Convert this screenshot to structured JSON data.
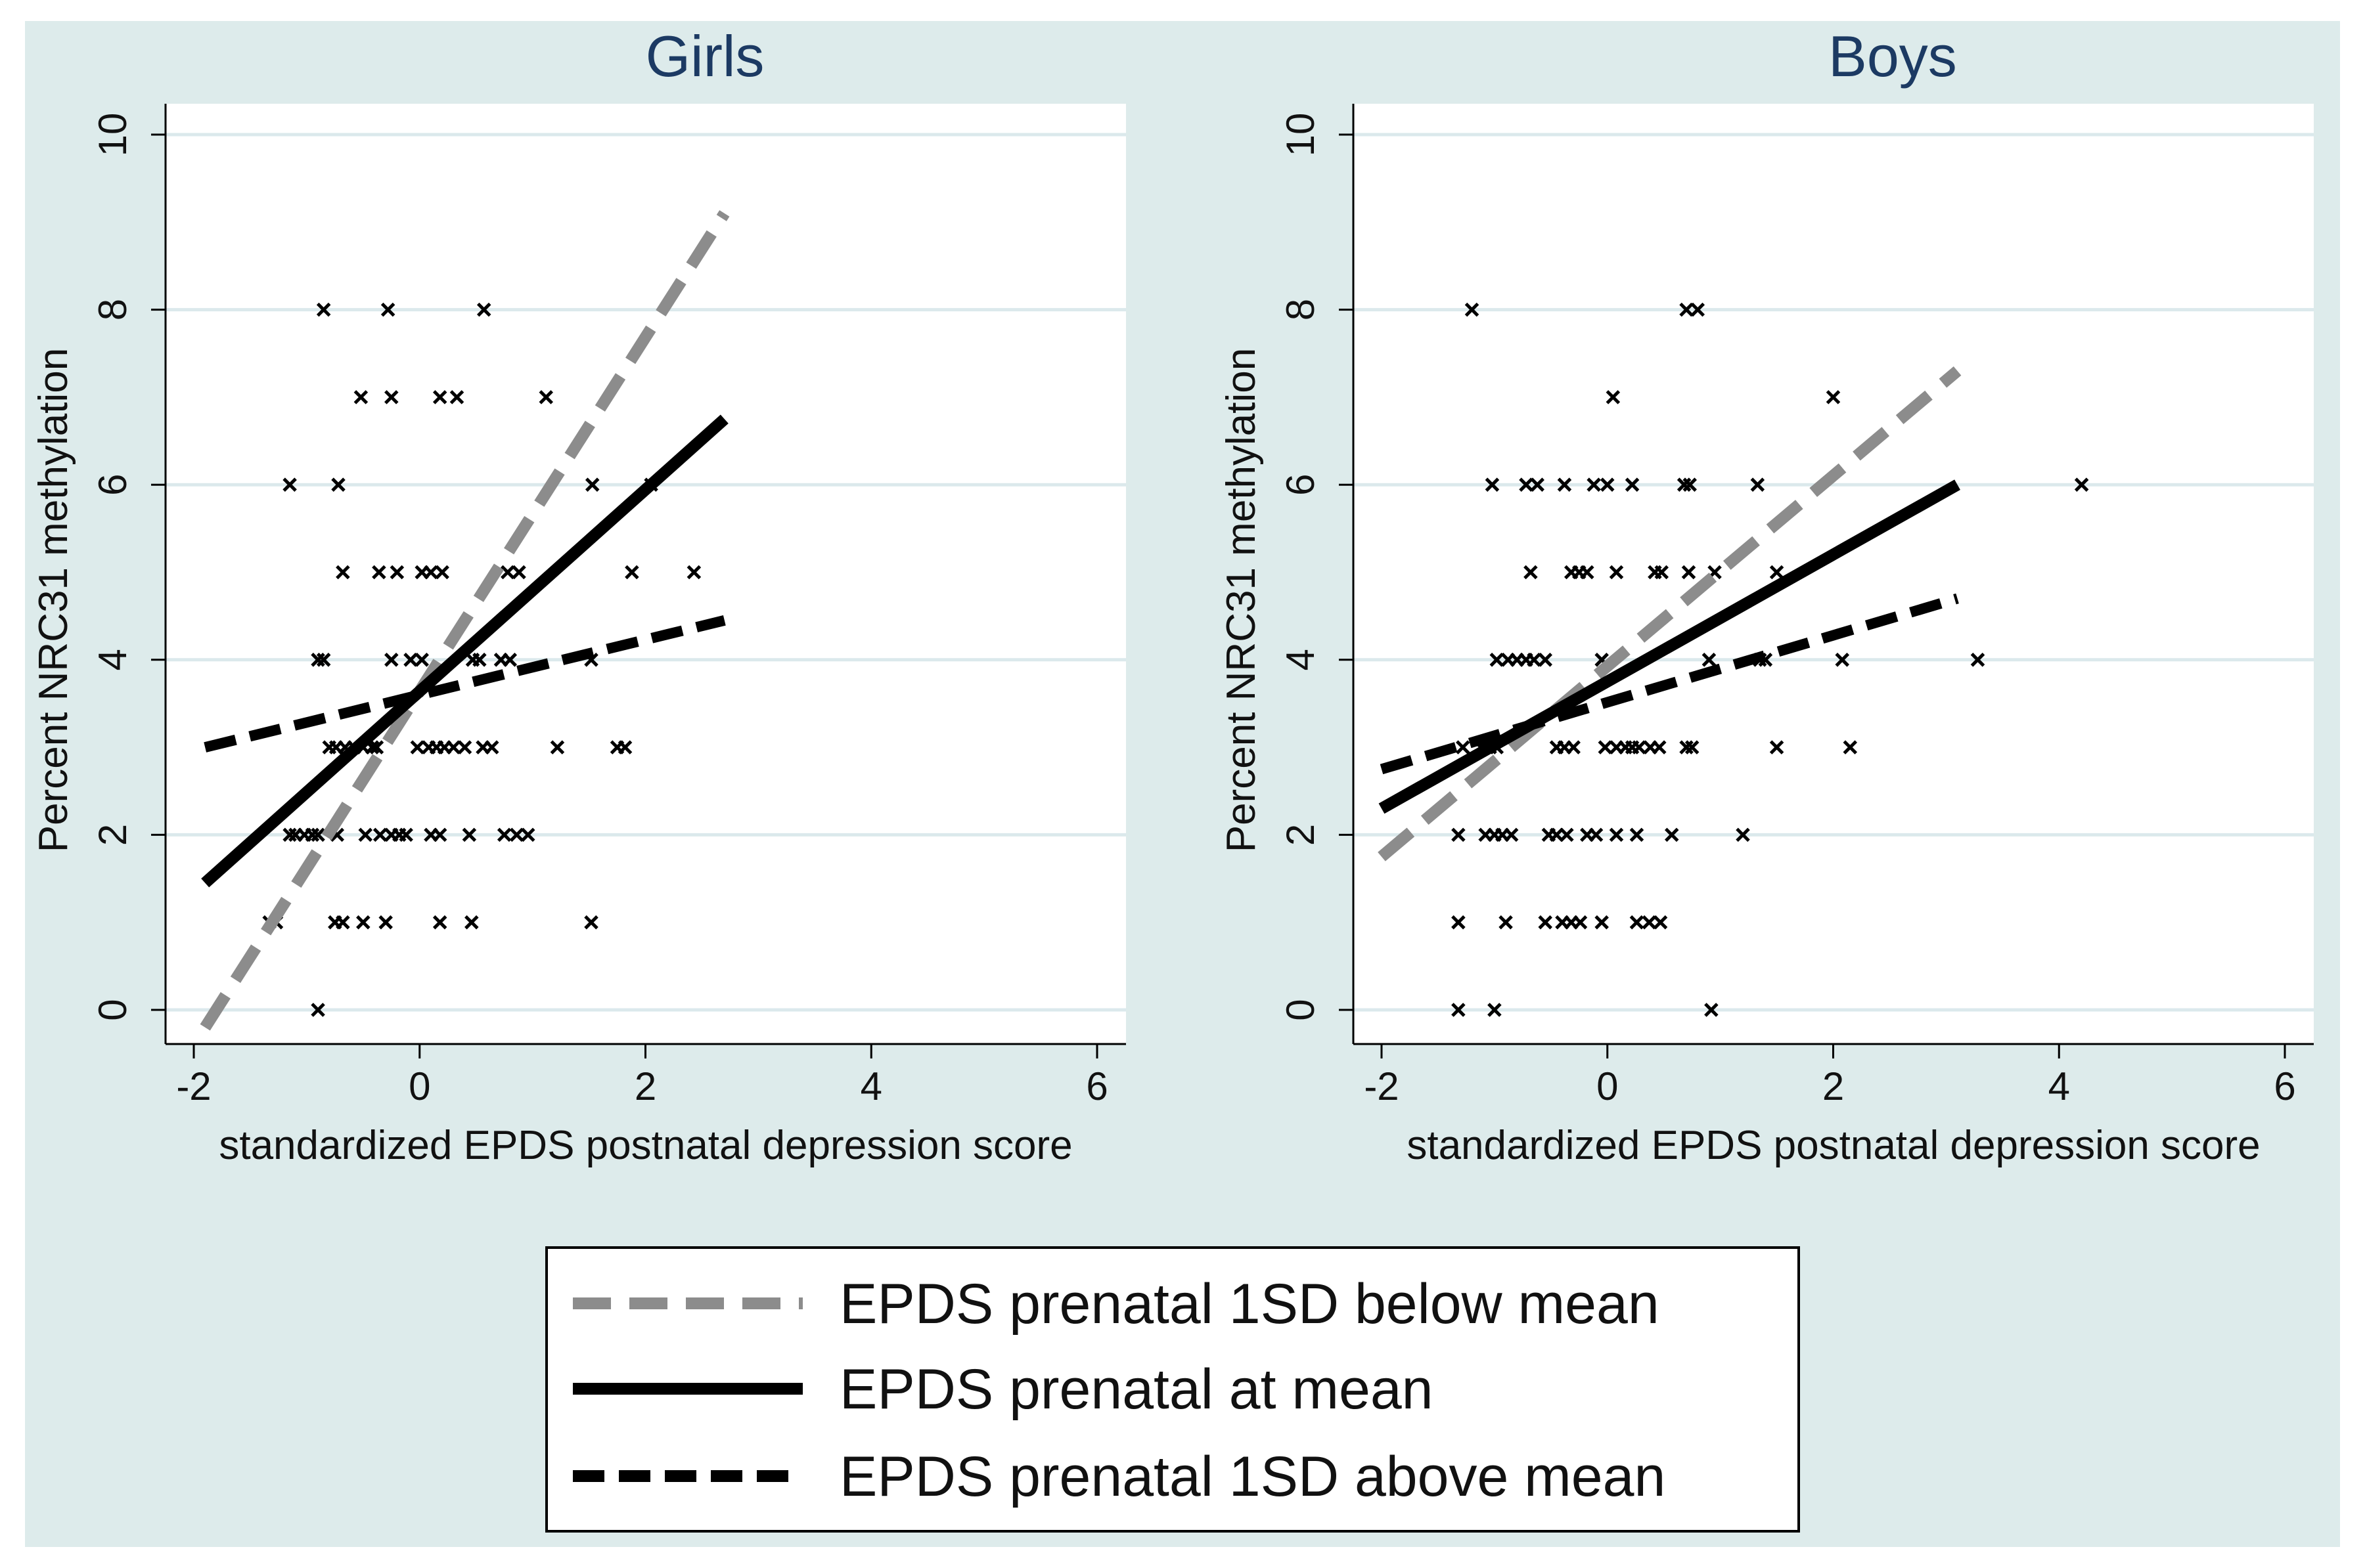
{
  "figure": {
    "background_color": "#ddebeb",
    "plot_area_color": "#ffffff",
    "grid_color": "#dbe9ec"
  },
  "legend": {
    "entries": [
      {
        "label": "EPDS prenatal 1SD below mean",
        "style": "dashed-gray",
        "color": "#8c8c8c"
      },
      {
        "label": "EPDS prenatal at mean",
        "style": "solid-black",
        "color": "#000000"
      },
      {
        "label": "EPDS prenatal 1SD above mean",
        "style": "dashed-black",
        "color": "#000000"
      }
    ]
  },
  "chart_data": [
    {
      "type": "scatter",
      "title": "Girls",
      "xlabel": "standardized EPDS postnatal depression score",
      "ylabel": "Percent NRC31 methylation",
      "xlim": [
        -2,
        6
      ],
      "ylim": [
        0,
        10
      ],
      "xticks": [
        -2,
        0,
        2,
        4,
        6
      ],
      "xtick_labels": [
        "-2",
        "0",
        "2",
        "4",
        "6"
      ],
      "yticks": [
        0,
        2,
        4,
        6,
        8,
        10
      ],
      "ytick_labels": [
        "0",
        "2",
        "4",
        "6",
        "8",
        "10"
      ],
      "grid": true,
      "points": [
        [
          -0.85,
          8
        ],
        [
          -0.28,
          8
        ],
        [
          0.57,
          8
        ],
        [
          -0.52,
          7
        ],
        [
          -0.25,
          7
        ],
        [
          0.18,
          7
        ],
        [
          0.33,
          7
        ],
        [
          1.12,
          7
        ],
        [
          -1.15,
          6
        ],
        [
          -0.72,
          6
        ],
        [
          1.53,
          6
        ],
        [
          2.05,
          6
        ],
        [
          -0.68,
          5
        ],
        [
          -0.36,
          5
        ],
        [
          -0.2,
          5
        ],
        [
          0.02,
          5
        ],
        [
          0.1,
          5
        ],
        [
          0.2,
          5
        ],
        [
          0.78,
          5
        ],
        [
          0.88,
          5
        ],
        [
          1.88,
          5
        ],
        [
          2.43,
          5
        ],
        [
          -0.9,
          4
        ],
        [
          -0.85,
          4
        ],
        [
          -0.25,
          4
        ],
        [
          -0.08,
          4
        ],
        [
          0.02,
          4
        ],
        [
          0.47,
          4
        ],
        [
          0.53,
          4
        ],
        [
          0.72,
          4
        ],
        [
          0.8,
          4
        ],
        [
          1.52,
          4
        ],
        [
          -0.8,
          3
        ],
        [
          -0.74,
          3
        ],
        [
          -0.66,
          3
        ],
        [
          -0.58,
          3
        ],
        [
          -0.5,
          3
        ],
        [
          -0.42,
          3
        ],
        [
          -0.38,
          3
        ],
        [
          -0.02,
          3
        ],
        [
          0.08,
          3
        ],
        [
          0.15,
          3
        ],
        [
          0.22,
          3
        ],
        [
          0.3,
          3
        ],
        [
          0.4,
          3
        ],
        [
          0.56,
          3
        ],
        [
          0.64,
          3
        ],
        [
          1.22,
          3
        ],
        [
          1.75,
          3
        ],
        [
          1.82,
          3
        ],
        [
          -1.15,
          2
        ],
        [
          -1.1,
          2
        ],
        [
          -1.02,
          2
        ],
        [
          -0.95,
          2
        ],
        [
          -0.9,
          2
        ],
        [
          -0.73,
          2
        ],
        [
          -0.48,
          2
        ],
        [
          -0.35,
          2
        ],
        [
          -0.25,
          2
        ],
        [
          -0.18,
          2
        ],
        [
          -0.12,
          2
        ],
        [
          0.1,
          2
        ],
        [
          0.18,
          2
        ],
        [
          0.44,
          2
        ],
        [
          0.75,
          2
        ],
        [
          0.86,
          2
        ],
        [
          0.96,
          2
        ],
        [
          -1.33,
          1
        ],
        [
          -1.27,
          1
        ],
        [
          -0.75,
          1
        ],
        [
          -0.68,
          1
        ],
        [
          -0.5,
          1
        ],
        [
          -0.3,
          1
        ],
        [
          0.18,
          1
        ],
        [
          0.46,
          1
        ],
        [
          1.52,
          1
        ],
        [
          -0.9,
          0
        ]
      ],
      "series": [
        {
          "name": "EPDS prenatal 1SD below mean",
          "x": [
            -1.9,
            2.7
          ],
          "y": [
            -0.2,
            9.1
          ]
        },
        {
          "name": "EPDS prenatal at mean",
          "x": [
            -1.9,
            2.7
          ],
          "y": [
            1.45,
            6.75
          ]
        },
        {
          "name": "EPDS prenatal 1SD above mean",
          "x": [
            -1.9,
            2.7
          ],
          "y": [
            3.0,
            4.45
          ]
        }
      ]
    },
    {
      "type": "scatter",
      "title": "Boys",
      "xlabel": "standardized EPDS postnatal depression score",
      "ylabel": "Percent NRC31 methylation",
      "xlim": [
        -2,
        6
      ],
      "ylim": [
        0,
        10
      ],
      "xticks": [
        -2,
        0,
        2,
        4,
        6
      ],
      "xtick_labels": [
        "-2",
        "0",
        "2",
        "4",
        "6"
      ],
      "yticks": [
        0,
        2,
        4,
        6,
        8,
        10
      ],
      "ytick_labels": [
        "0",
        "2",
        "4",
        "6",
        "8",
        "10"
      ],
      "grid": true,
      "points": [
        [
          -1.2,
          8
        ],
        [
          0.7,
          8
        ],
        [
          0.8,
          8
        ],
        [
          0.05,
          7
        ],
        [
          2.0,
          7
        ],
        [
          -1.02,
          6
        ],
        [
          -0.72,
          6
        ],
        [
          -0.62,
          6
        ],
        [
          -0.38,
          6
        ],
        [
          -0.12,
          6
        ],
        [
          0.0,
          6
        ],
        [
          0.22,
          6
        ],
        [
          0.68,
          6
        ],
        [
          0.73,
          6
        ],
        [
          1.33,
          6
        ],
        [
          4.2,
          6
        ],
        [
          -0.68,
          5
        ],
        [
          -0.32,
          5
        ],
        [
          -0.25,
          5
        ],
        [
          -0.18,
          5
        ],
        [
          0.08,
          5
        ],
        [
          0.42,
          5
        ],
        [
          0.48,
          5
        ],
        [
          0.72,
          5
        ],
        [
          0.95,
          5
        ],
        [
          1.5,
          5
        ],
        [
          -0.98,
          4
        ],
        [
          -0.88,
          4
        ],
        [
          -0.8,
          4
        ],
        [
          -0.72,
          4
        ],
        [
          -0.65,
          4
        ],
        [
          -0.55,
          4
        ],
        [
          -0.05,
          4
        ],
        [
          0.9,
          4
        ],
        [
          1.35,
          4
        ],
        [
          1.4,
          4
        ],
        [
          2.08,
          4
        ],
        [
          3.28,
          4
        ],
        [
          -1.28,
          3
        ],
        [
          -1.12,
          3
        ],
        [
          -1.04,
          3
        ],
        [
          -0.98,
          3
        ],
        [
          -0.45,
          3
        ],
        [
          -0.38,
          3
        ],
        [
          -0.3,
          3
        ],
        [
          -0.02,
          3
        ],
        [
          0.08,
          3
        ],
        [
          0.16,
          3
        ],
        [
          0.22,
          3
        ],
        [
          0.28,
          3
        ],
        [
          0.38,
          3
        ],
        [
          0.46,
          3
        ],
        [
          0.7,
          3
        ],
        [
          0.75,
          3
        ],
        [
          1.5,
          3
        ],
        [
          2.15,
          3
        ],
        [
          -1.32,
          2
        ],
        [
          -1.08,
          2
        ],
        [
          -1.0,
          2
        ],
        [
          -0.93,
          2
        ],
        [
          -0.85,
          2
        ],
        [
          -0.52,
          2
        ],
        [
          -0.45,
          2
        ],
        [
          -0.36,
          2
        ],
        [
          -0.18,
          2
        ],
        [
          -0.1,
          2
        ],
        [
          0.08,
          2
        ],
        [
          0.26,
          2
        ],
        [
          0.57,
          2
        ],
        [
          1.2,
          2
        ],
        [
          -1.32,
          1
        ],
        [
          -0.9,
          1
        ],
        [
          -0.55,
          1
        ],
        [
          -0.4,
          1
        ],
        [
          -0.32,
          1
        ],
        [
          -0.24,
          1
        ],
        [
          -0.05,
          1
        ],
        [
          0.26,
          1
        ],
        [
          0.37,
          1
        ],
        [
          0.47,
          1
        ],
        [
          -1.32,
          0
        ],
        [
          -1.0,
          0
        ],
        [
          0.92,
          0
        ]
      ],
      "series": [
        {
          "name": "EPDS prenatal 1SD below mean",
          "x": [
            -2.0,
            3.1
          ],
          "y": [
            1.75,
            7.3
          ]
        },
        {
          "name": "EPDS prenatal at mean",
          "x": [
            -2.0,
            3.1
          ],
          "y": [
            2.3,
            6.0
          ]
        },
        {
          "name": "EPDS prenatal 1SD above mean",
          "x": [
            -2.0,
            3.1
          ],
          "y": [
            2.75,
            4.7
          ]
        }
      ]
    }
  ]
}
